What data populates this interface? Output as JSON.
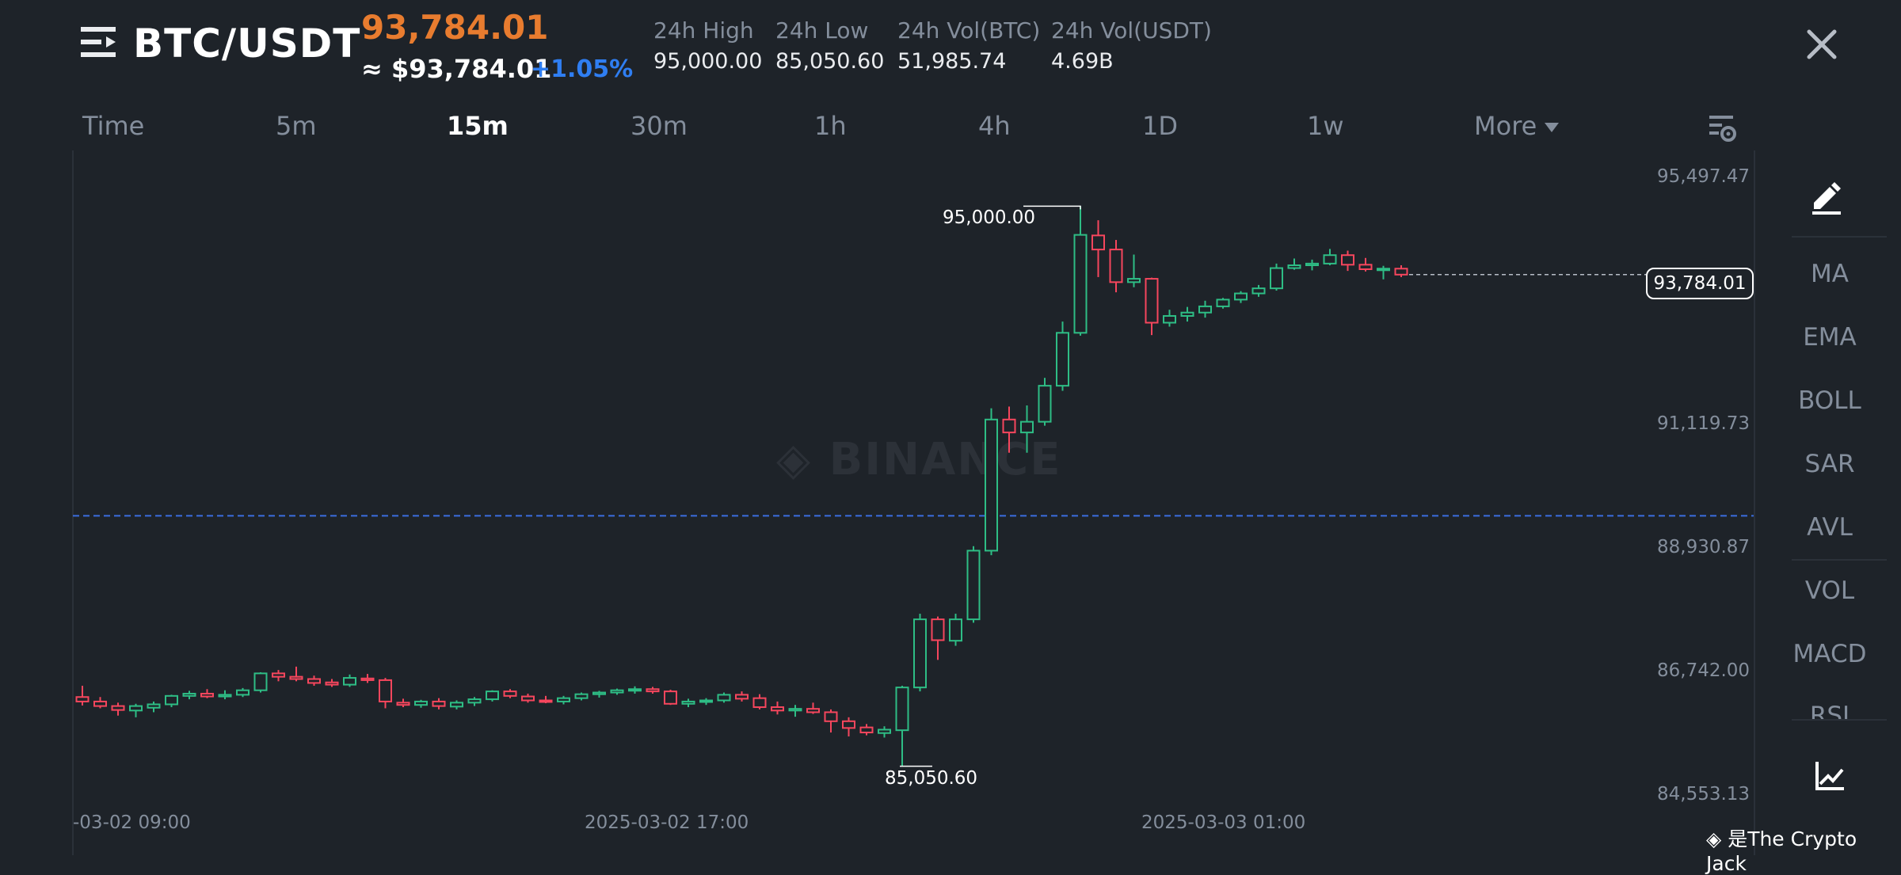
{
  "header": {
    "pair": "BTC/USDT",
    "last_price": "93,784.01",
    "approx_usd": "≈ $93,784.01",
    "change_pct": "+1.05%",
    "stats": [
      {
        "label": "24h High",
        "value": "95,000.00"
      },
      {
        "label": "24h Low",
        "value": "85,050.60"
      },
      {
        "label": "24h Vol(BTC)",
        "value": "51,985.74"
      },
      {
        "label": "24h Vol(USDT)",
        "value": "4.69B"
      }
    ],
    "icons": {
      "menu": "menu-icon",
      "close": "close-icon"
    }
  },
  "tabs": [
    {
      "label": "Time"
    },
    {
      "label": "5m"
    },
    {
      "label": "15m",
      "active": true
    },
    {
      "label": "30m"
    },
    {
      "label": "1h"
    },
    {
      "label": "4h"
    },
    {
      "label": "1D"
    },
    {
      "label": "1w"
    },
    {
      "label": "More"
    }
  ],
  "y_axis": {
    "labels": [
      "95,497.47",
      "91,119.73",
      "88,930.87",
      "86,742.00",
      "84,553.13"
    ]
  },
  "x_axis": {
    "labels": [
      "-03-02 09:00",
      "2025-03-02 17:00",
      "2025-03-03 01:00"
    ]
  },
  "markers": {
    "high": "95,000.00",
    "low": "85,050.60",
    "current_price_tag": "93,784.01"
  },
  "indicators": [
    "MA",
    "EMA",
    "BOLL",
    "SAR",
    "AVL",
    "VOL",
    "MACD",
    "RSI"
  ],
  "tools": {
    "draw": "draw-pencil-icon",
    "chart": "chart-trend-icon"
  },
  "watermark": "BINANCE",
  "credit": "是The Crypto Jack",
  "colors": {
    "up": "#2ebd85",
    "down": "#f6465d",
    "accent": "#e87c2f",
    "change": "#2f7ef2",
    "ref_line": "#3b6de0"
  },
  "chart_data": {
    "type": "candlestick",
    "interval": "15m",
    "ylim": [
      84553.13,
      95497.47
    ],
    "candles": [
      {
        "o": 86280,
        "h": 86480,
        "l": 86130,
        "c": 86200
      },
      {
        "o": 86200,
        "h": 86280,
        "l": 86080,
        "c": 86120
      },
      {
        "o": 86120,
        "h": 86180,
        "l": 85950,
        "c": 86050
      },
      {
        "o": 86040,
        "h": 86160,
        "l": 85920,
        "c": 86120
      },
      {
        "o": 86090,
        "h": 86200,
        "l": 86010,
        "c": 86150
      },
      {
        "o": 86150,
        "h": 86320,
        "l": 86100,
        "c": 86300
      },
      {
        "o": 86300,
        "h": 86390,
        "l": 86240,
        "c": 86340
      },
      {
        "o": 86340,
        "h": 86420,
        "l": 86260,
        "c": 86290
      },
      {
        "o": 86290,
        "h": 86400,
        "l": 86240,
        "c": 86320
      },
      {
        "o": 86320,
        "h": 86440,
        "l": 86280,
        "c": 86400
      },
      {
        "o": 86400,
        "h": 86720,
        "l": 86360,
        "c": 86700
      },
      {
        "o": 86700,
        "h": 86760,
        "l": 86560,
        "c": 86640
      },
      {
        "o": 86640,
        "h": 86820,
        "l": 86560,
        "c": 86600
      },
      {
        "o": 86600,
        "h": 86660,
        "l": 86480,
        "c": 86530
      },
      {
        "o": 86540,
        "h": 86600,
        "l": 86460,
        "c": 86500
      },
      {
        "o": 86500,
        "h": 86680,
        "l": 86460,
        "c": 86620
      },
      {
        "o": 86610,
        "h": 86690,
        "l": 86530,
        "c": 86580
      },
      {
        "o": 86580,
        "h": 86620,
        "l": 86080,
        "c": 86200
      },
      {
        "o": 86180,
        "h": 86250,
        "l": 86100,
        "c": 86140
      },
      {
        "o": 86140,
        "h": 86230,
        "l": 86090,
        "c": 86200
      },
      {
        "o": 86200,
        "h": 86260,
        "l": 86060,
        "c": 86120
      },
      {
        "o": 86110,
        "h": 86220,
        "l": 86060,
        "c": 86180
      },
      {
        "o": 86180,
        "h": 86280,
        "l": 86120,
        "c": 86240
      },
      {
        "o": 86240,
        "h": 86400,
        "l": 86200,
        "c": 86380
      },
      {
        "o": 86380,
        "h": 86420,
        "l": 86260,
        "c": 86300
      },
      {
        "o": 86290,
        "h": 86340,
        "l": 86180,
        "c": 86220
      },
      {
        "o": 86220,
        "h": 86300,
        "l": 86170,
        "c": 86200
      },
      {
        "o": 86200,
        "h": 86300,
        "l": 86150,
        "c": 86260
      },
      {
        "o": 86260,
        "h": 86360,
        "l": 86220,
        "c": 86330
      },
      {
        "o": 86330,
        "h": 86390,
        "l": 86270,
        "c": 86360
      },
      {
        "o": 86360,
        "h": 86430,
        "l": 86320,
        "c": 86400
      },
      {
        "o": 86400,
        "h": 86470,
        "l": 86340,
        "c": 86420
      },
      {
        "o": 86420,
        "h": 86460,
        "l": 86340,
        "c": 86380
      },
      {
        "o": 86380,
        "h": 86410,
        "l": 86140,
        "c": 86160
      },
      {
        "o": 86160,
        "h": 86250,
        "l": 86100,
        "c": 86200
      },
      {
        "o": 86200,
        "h": 86260,
        "l": 86140,
        "c": 86220
      },
      {
        "o": 86220,
        "h": 86360,
        "l": 86180,
        "c": 86320
      },
      {
        "o": 86320,
        "h": 86380,
        "l": 86200,
        "c": 86250
      },
      {
        "o": 86260,
        "h": 86330,
        "l": 86060,
        "c": 86100
      },
      {
        "o": 86100,
        "h": 86200,
        "l": 85970,
        "c": 86040
      },
      {
        "o": 86040,
        "h": 86140,
        "l": 85930,
        "c": 86070
      },
      {
        "o": 86070,
        "h": 86180,
        "l": 85980,
        "c": 86010
      },
      {
        "o": 86010,
        "h": 86060,
        "l": 85650,
        "c": 85850
      },
      {
        "o": 85850,
        "h": 85920,
        "l": 85580,
        "c": 85730
      },
      {
        "o": 85740,
        "h": 85800,
        "l": 85600,
        "c": 85650
      },
      {
        "o": 85640,
        "h": 85760,
        "l": 85560,
        "c": 85700
      },
      {
        "o": 85690,
        "h": 86480,
        "l": 85050.6,
        "c": 86450
      },
      {
        "o": 86450,
        "h": 87760,
        "l": 86380,
        "c": 87660
      },
      {
        "o": 87660,
        "h": 87710,
        "l": 86940,
        "c": 87290
      },
      {
        "o": 87280,
        "h": 87760,
        "l": 87190,
        "c": 87660
      },
      {
        "o": 87660,
        "h": 88960,
        "l": 87600,
        "c": 88880
      },
      {
        "o": 88880,
        "h": 91410,
        "l": 88800,
        "c": 91210
      },
      {
        "o": 91210,
        "h": 91440,
        "l": 90620,
        "c": 90980
      },
      {
        "o": 90980,
        "h": 91460,
        "l": 90620,
        "c": 91170
      },
      {
        "o": 91170,
        "h": 91950,
        "l": 91100,
        "c": 91810
      },
      {
        "o": 91810,
        "h": 92950,
        "l": 91720,
        "c": 92750
      },
      {
        "o": 92750,
        "h": 95000,
        "l": 92700,
        "c": 94490
      },
      {
        "o": 94480,
        "h": 94750,
        "l": 93740,
        "c": 94230
      },
      {
        "o": 94230,
        "h": 94400,
        "l": 93470,
        "c": 93650
      },
      {
        "o": 93650,
        "h": 94140,
        "l": 93560,
        "c": 93710
      },
      {
        "o": 93710,
        "h": 93730,
        "l": 92710,
        "c": 92930
      },
      {
        "o": 92930,
        "h": 93160,
        "l": 92860,
        "c": 93050
      },
      {
        "o": 93050,
        "h": 93210,
        "l": 92950,
        "c": 93110
      },
      {
        "o": 93110,
        "h": 93320,
        "l": 93020,
        "c": 93220
      },
      {
        "o": 93220,
        "h": 93370,
        "l": 93180,
        "c": 93340
      },
      {
        "o": 93340,
        "h": 93490,
        "l": 93280,
        "c": 93450
      },
      {
        "o": 93450,
        "h": 93600,
        "l": 93390,
        "c": 93540
      },
      {
        "o": 93540,
        "h": 93980,
        "l": 93500,
        "c": 93900
      },
      {
        "o": 93900,
        "h": 94070,
        "l": 93870,
        "c": 93950
      },
      {
        "o": 93950,
        "h": 94050,
        "l": 93860,
        "c": 93980
      },
      {
        "o": 93980,
        "h": 94240,
        "l": 93950,
        "c": 94130
      },
      {
        "o": 94130,
        "h": 94210,
        "l": 93850,
        "c": 93960
      },
      {
        "o": 93960,
        "h": 94080,
        "l": 93840,
        "c": 93880
      },
      {
        "o": 93880,
        "h": 93940,
        "l": 93700,
        "c": 93890
      },
      {
        "o": 93890,
        "h": 93950,
        "l": 93740,
        "c": 93784.01
      }
    ],
    "reference_line": 89500,
    "last_price": 93784.01
  }
}
